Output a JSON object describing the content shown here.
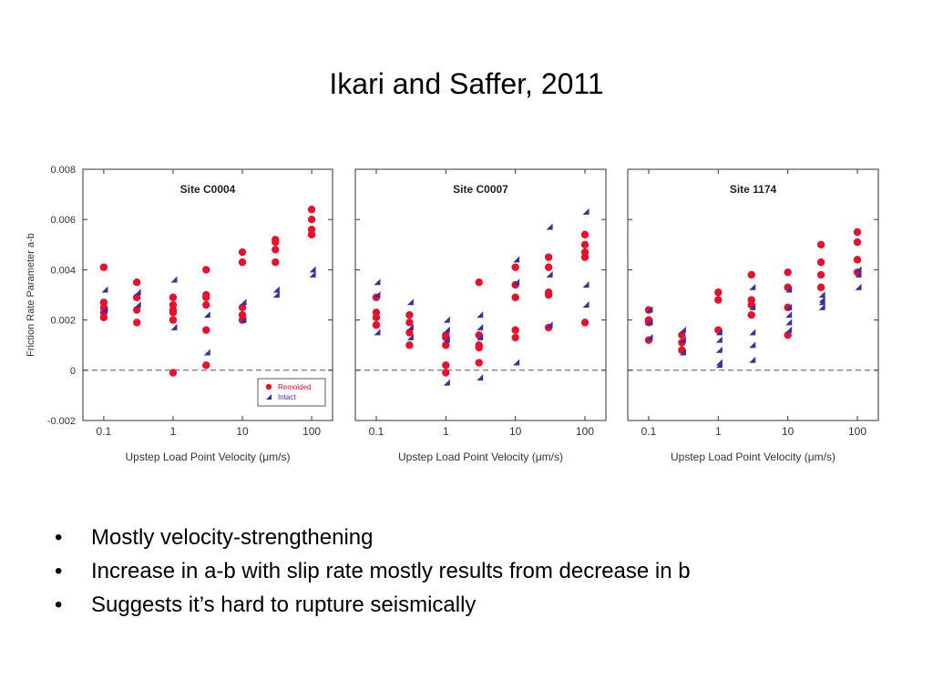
{
  "slide": {
    "title": "Ikari and Saffer, 2011",
    "bullets": [
      "Mostly velocity-strengthening",
      "Increase in a-b with slip rate mostly results from decrease in b",
      "Suggests it’s hard to rupture seismically"
    ]
  },
  "chart_data": [
    {
      "type": "scatter",
      "title": "Site C0004",
      "xlabel": "Upstep Load Point Velocity (μm/s)",
      "ylabel": "Friction Rate Parameter a-b",
      "xscale": "log",
      "xlim": [
        0.05,
        200
      ],
      "ylim": [
        -0.002,
        0.008
      ],
      "xticks": [
        "0.1",
        "1",
        "10",
        "100"
      ],
      "yticks": [
        "0.008",
        "0.006",
        "0.004",
        "0.002",
        "0",
        "-0.002"
      ],
      "zero_line": "dashed",
      "legend": {
        "position": "bottom-right",
        "entries": [
          "Remolded",
          "Intact"
        ]
      },
      "series": [
        {
          "name": "Remolded",
          "marker": "circle",
          "color": "#e8102a",
          "points": [
            [
              0.1,
              0.0041
            ],
            [
              0.1,
              0.0027
            ],
            [
              0.1,
              0.0025
            ],
            [
              0.1,
              0.0023
            ],
            [
              0.1,
              0.0021
            ],
            [
              0.3,
              0.0035
            ],
            [
              0.3,
              0.0029
            ],
            [
              0.3,
              0.0024
            ],
            [
              0.3,
              0.0019
            ],
            [
              1,
              0.0029
            ],
            [
              1,
              0.0026
            ],
            [
              1,
              0.0024
            ],
            [
              1,
              0.0023
            ],
            [
              1,
              0.002
            ],
            [
              1,
              -0.0001
            ],
            [
              3,
              0.004
            ],
            [
              3,
              0.003
            ],
            [
              3,
              0.0029
            ],
            [
              3,
              0.0026
            ],
            [
              3,
              0.0016
            ],
            [
              3,
              0.0002
            ],
            [
              10,
              0.0047
            ],
            [
              10,
              0.0043
            ],
            [
              10,
              0.0025
            ],
            [
              10,
              0.0022
            ],
            [
              10,
              0.002
            ],
            [
              30,
              0.0052
            ],
            [
              30,
              0.0051
            ],
            [
              30,
              0.0048
            ],
            [
              30,
              0.0043
            ],
            [
              100,
              0.0064
            ],
            [
              100,
              0.006
            ],
            [
              100,
              0.0056
            ],
            [
              100,
              0.0054
            ]
          ]
        },
        {
          "name": "Intact",
          "marker": "triangle",
          "color": "#3a2fa0",
          "points": [
            [
              0.1,
              0.0032
            ],
            [
              0.1,
              0.0024
            ],
            [
              0.3,
              0.0031
            ],
            [
              0.3,
              0.0026
            ],
            [
              1,
              0.0036
            ],
            [
              1,
              0.0017
            ],
            [
              3,
              0.0022
            ],
            [
              3,
              0.0007
            ],
            [
              10,
              0.0027
            ],
            [
              10,
              0.002
            ],
            [
              30,
              0.0032
            ],
            [
              30,
              0.003
            ],
            [
              100,
              0.004
            ],
            [
              100,
              0.0038
            ]
          ]
        }
      ]
    },
    {
      "type": "scatter",
      "title": "Site C0007",
      "xlabel": "Upstep Load Point Velocity (μm/s)",
      "xscale": "log",
      "xlim": [
        0.05,
        200
      ],
      "ylim": [
        -0.002,
        0.008
      ],
      "xticks": [
        "0.1",
        "1",
        "10",
        "100"
      ],
      "zero_line": "dashed",
      "series": [
        {
          "name": "Remolded",
          "marker": "circle",
          "color": "#e8102a",
          "points": [
            [
              0.1,
              0.0029
            ],
            [
              0.1,
              0.0023
            ],
            [
              0.1,
              0.0021
            ],
            [
              0.1,
              0.0018
            ],
            [
              0.3,
              0.0022
            ],
            [
              0.3,
              0.0019
            ],
            [
              0.3,
              0.0015
            ],
            [
              0.3,
              0.001
            ],
            [
              1,
              0.0014
            ],
            [
              1,
              0.0013
            ],
            [
              1,
              0.001
            ],
            [
              1,
              0.0002
            ],
            [
              1,
              -0.0001
            ],
            [
              3,
              0.0035
            ],
            [
              3,
              0.0014
            ],
            [
              3,
              0.001
            ],
            [
              3,
              0.0009
            ],
            [
              3,
              0.0003
            ],
            [
              10,
              0.0041
            ],
            [
              10,
              0.0034
            ],
            [
              10,
              0.0029
            ],
            [
              10,
              0.0016
            ],
            [
              10,
              0.0013
            ],
            [
              30,
              0.0045
            ],
            [
              30,
              0.0041
            ],
            [
              30,
              0.0031
            ],
            [
              30,
              0.003
            ],
            [
              30,
              0.0017
            ],
            [
              100,
              0.0054
            ],
            [
              100,
              0.005
            ],
            [
              100,
              0.0047
            ],
            [
              100,
              0.0045
            ],
            [
              100,
              0.0019
            ]
          ]
        },
        {
          "name": "Intact",
          "marker": "triangle",
          "color": "#3a2fa0",
          "points": [
            [
              0.1,
              0.0035
            ],
            [
              0.1,
              0.003
            ],
            [
              0.1,
              0.0015
            ],
            [
              0.3,
              0.0027
            ],
            [
              0.3,
              0.0017
            ],
            [
              0.3,
              0.0013
            ],
            [
              1,
              0.002
            ],
            [
              1,
              0.0016
            ],
            [
              1,
              0.0012
            ],
            [
              1,
              -0.0005
            ],
            [
              3,
              0.0022
            ],
            [
              3,
              0.0017
            ],
            [
              3,
              0.0013
            ],
            [
              3,
              -0.0003
            ],
            [
              10,
              0.0044
            ],
            [
              10,
              0.0035
            ],
            [
              10,
              0.0003
            ],
            [
              30,
              0.0057
            ],
            [
              30,
              0.0038
            ],
            [
              30,
              0.0018
            ],
            [
              100,
              0.0063
            ],
            [
              100,
              0.0034
            ],
            [
              100,
              0.0026
            ]
          ]
        }
      ]
    },
    {
      "type": "scatter",
      "title": "Site 1174",
      "xlabel": "Upstep Load Point Velocity (μm/s)",
      "xscale": "log",
      "xlim": [
        0.05,
        200
      ],
      "ylim": [
        -0.002,
        0.008
      ],
      "xticks": [
        "0.1",
        "1",
        "10",
        "100"
      ],
      "zero_line": "dashed",
      "series": [
        {
          "name": "Remolded",
          "marker": "circle",
          "color": "#e8102a",
          "points": [
            [
              0.1,
              0.0024
            ],
            [
              0.1,
              0.002
            ],
            [
              0.1,
              0.0019
            ],
            [
              0.1,
              0.0012
            ],
            [
              0.3,
              0.0014
            ],
            [
              0.3,
              0.0011
            ],
            [
              0.3,
              0.0008
            ],
            [
              1,
              0.0031
            ],
            [
              1,
              0.0028
            ],
            [
              1,
              0.0016
            ],
            [
              3,
              0.0038
            ],
            [
              3,
              0.0028
            ],
            [
              3,
              0.0026
            ],
            [
              3,
              0.0022
            ],
            [
              10,
              0.0039
            ],
            [
              10,
              0.0033
            ],
            [
              10,
              0.0025
            ],
            [
              10,
              0.0014
            ],
            [
              30,
              0.005
            ],
            [
              30,
              0.0043
            ],
            [
              30,
              0.0038
            ],
            [
              30,
              0.0033
            ],
            [
              100,
              0.0055
            ],
            [
              100,
              0.0051
            ],
            [
              100,
              0.0044
            ],
            [
              100,
              0.0039
            ]
          ]
        },
        {
          "name": "Intact",
          "marker": "triangle",
          "color": "#3a2fa0",
          "points": [
            [
              0.1,
              0.0024
            ],
            [
              0.1,
              0.0019
            ],
            [
              0.1,
              0.0013
            ],
            [
              0.3,
              0.0016
            ],
            [
              0.3,
              0.0012
            ],
            [
              0.3,
              0.0007
            ],
            [
              1,
              0.0015
            ],
            [
              1,
              0.0012
            ],
            [
              1,
              0.0008
            ],
            [
              1,
              0.0003
            ],
            [
              1,
              0.0002
            ],
            [
              3,
              0.0033
            ],
            [
              3,
              0.0025
            ],
            [
              3,
              0.0015
            ],
            [
              3,
              0.001
            ],
            [
              3,
              0.0004
            ],
            [
              10,
              0.0032
            ],
            [
              10,
              0.0025
            ],
            [
              10,
              0.0022
            ],
            [
              10,
              0.0019
            ],
            [
              10,
              0.0016
            ],
            [
              30,
              0.003
            ],
            [
              30,
              0.0028
            ],
            [
              30,
              0.0027
            ],
            [
              30,
              0.0025
            ],
            [
              100,
              0.004
            ],
            [
              100,
              0.0038
            ],
            [
              100,
              0.0033
            ]
          ]
        }
      ]
    }
  ]
}
